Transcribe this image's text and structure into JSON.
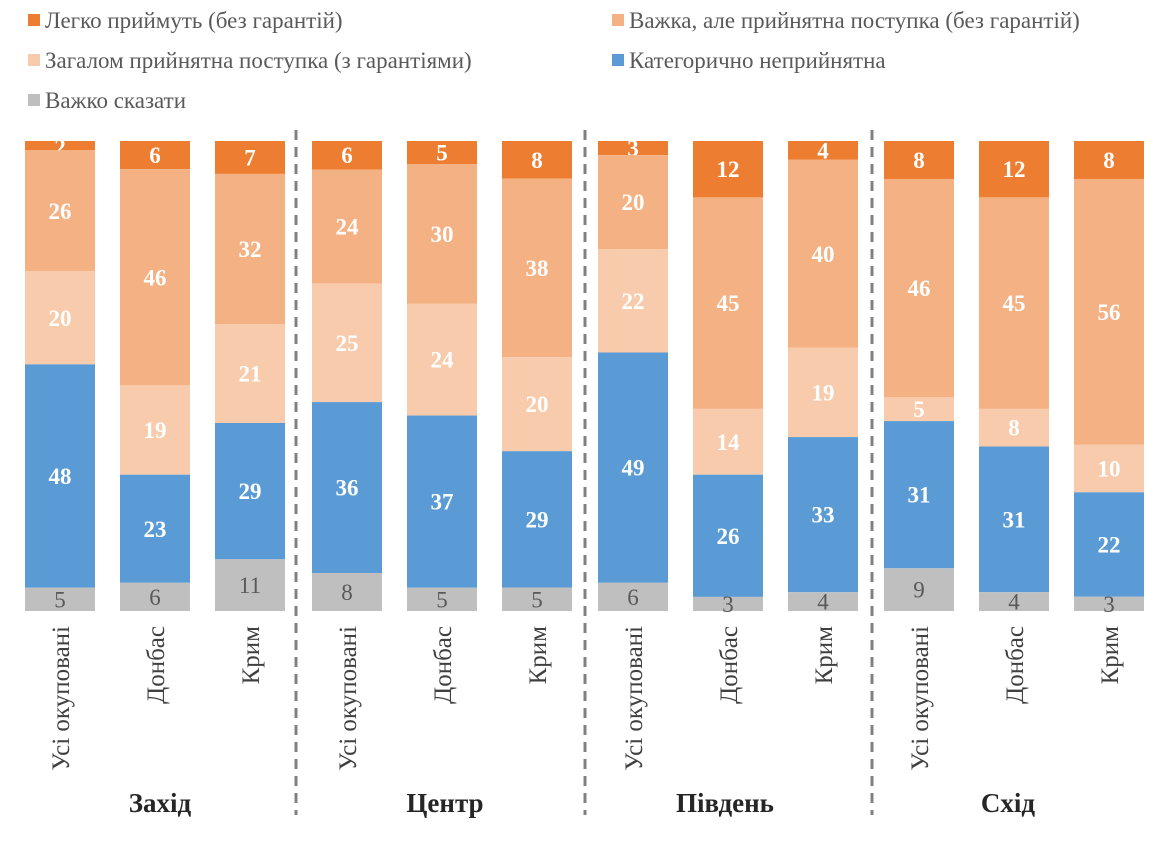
{
  "chart_data": {
    "type": "bar",
    "stacked": true,
    "orientation": "vertical",
    "legend_position": "top",
    "grid": false,
    "groups": [
      {
        "name": "Захід",
        "categories": [
          "Усі окуповані",
          "Донбас",
          "Крим"
        ]
      },
      {
        "name": "Центр",
        "categories": [
          "Усі окуповані",
          "Донбас",
          "Крим"
        ]
      },
      {
        "name": "Південь",
        "categories": [
          "Усі окуповані",
          "Донбас",
          "Крим"
        ]
      },
      {
        "name": "Схід",
        "categories": [
          "Усі окуповані",
          "Донбас",
          "Крим"
        ]
      }
    ],
    "series": [
      {
        "name": "Легко приймуть (без гарантій)",
        "color": "#ED7D31",
        "values": [
          2,
          6,
          7,
          6,
          5,
          8,
          3,
          12,
          4,
          8,
          12,
          8
        ]
      },
      {
        "name": "Важка, але прийнятна поступка (без гарантій)",
        "color": "#F4B183",
        "values": [
          26,
          46,
          32,
          24,
          30,
          38,
          20,
          45,
          40,
          46,
          45,
          56
        ]
      },
      {
        "name": "Загалом прийнятна поступка (з гарантіями)",
        "color": "#F8CBAD",
        "values": [
          20,
          19,
          21,
          25,
          24,
          20,
          22,
          14,
          19,
          5,
          8,
          10
        ]
      },
      {
        "name": "Категорично неприйнятна",
        "color": "#5B9BD5",
        "values": [
          48,
          23,
          29,
          36,
          37,
          29,
          49,
          26,
          33,
          31,
          31,
          22
        ]
      },
      {
        "name": "Важко сказати",
        "color": "#BFBFBF",
        "values": [
          5,
          6,
          11,
          8,
          5,
          5,
          6,
          3,
          4,
          9,
          4,
          3
        ]
      }
    ]
  }
}
